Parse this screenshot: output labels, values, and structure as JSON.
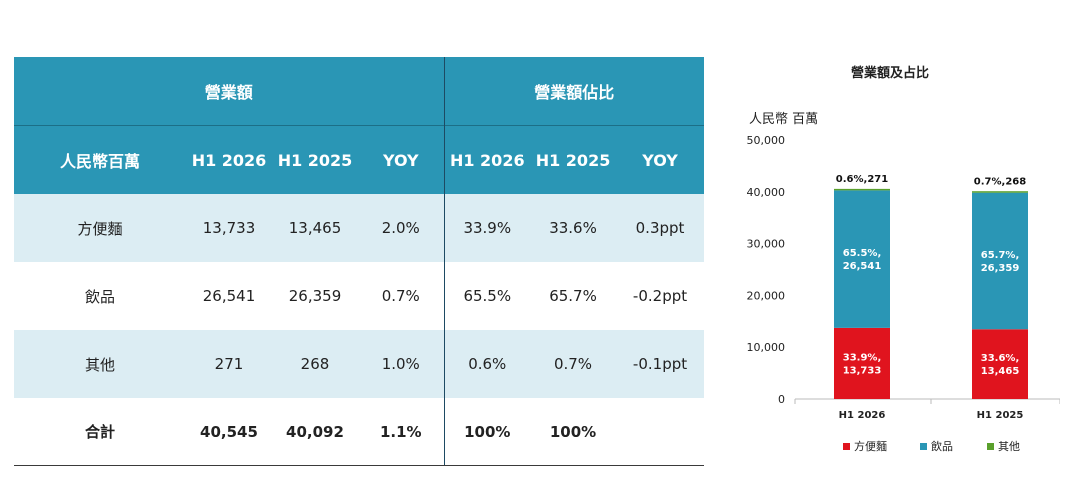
{
  "table": {
    "group_revenue": "營業額",
    "group_share": "營業額佔比",
    "unit_label": "人民幣百萬",
    "columns": [
      "H1 2026",
      "H1 2025",
      "YOY",
      "H1 2026",
      "H1 2025",
      "YOY"
    ],
    "rows": [
      {
        "label": "方便麵",
        "cells": [
          "13,733",
          "13,465",
          "2.0%",
          "33.9%",
          "33.6%",
          "0.3ppt"
        ]
      },
      {
        "label": "飲品",
        "cells": [
          "26,541",
          "26,359",
          "0.7%",
          "65.5%",
          "65.7%",
          "-0.2ppt"
        ]
      },
      {
        "label": "其他",
        "cells": [
          "271",
          "268",
          "1.0%",
          "0.6%",
          "0.7%",
          "-0.1ppt"
        ]
      }
    ],
    "total": {
      "label": "合計",
      "cells": [
        "40,545",
        "40,092",
        "1.1%",
        "100%",
        "100%",
        ""
      ]
    }
  },
  "chart_data": {
    "type": "bar",
    "stacked": true,
    "title": "營業額及占比",
    "ylabel": "人民幣 百萬",
    "ylim": [
      0,
      50000
    ],
    "yticks": [
      0,
      10000,
      20000,
      30000,
      40000,
      50000
    ],
    "ytick_labels": [
      "0",
      "10,000",
      "20,000",
      "30,000",
      "40,000",
      "50,000"
    ],
    "categories": [
      "H1 2026",
      "H1 2025"
    ],
    "series": [
      {
        "name": "方便麵",
        "values": [
          13733,
          13465
        ],
        "color": "#e0141e",
        "labels": [
          [
            "33.9%,",
            "13,733"
          ],
          [
            "33.6%,",
            "13,465"
          ]
        ]
      },
      {
        "name": "飲品",
        "values": [
          26541,
          26359
        ],
        "color": "#2a96b5",
        "labels": [
          [
            "65.5%,",
            "26,541"
          ],
          [
            "65.7%,",
            "26,359"
          ]
        ]
      },
      {
        "name": "其他",
        "values": [
          271,
          268
        ],
        "color": "#5aa02c",
        "labels": [
          [
            "0.6%,271"
          ],
          [
            "0.7%,268"
          ]
        ]
      }
    ]
  }
}
